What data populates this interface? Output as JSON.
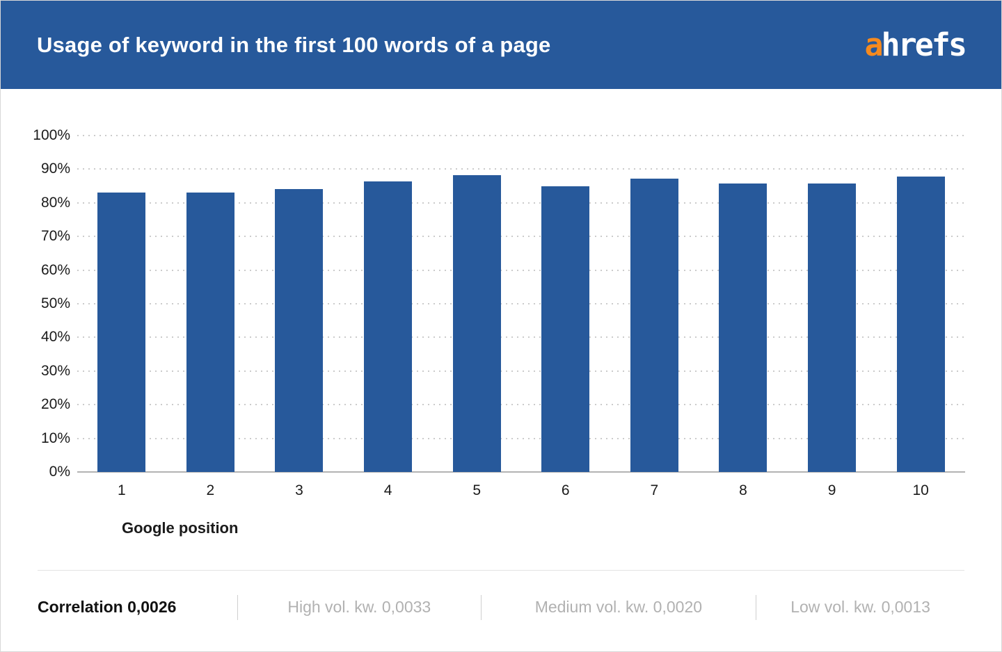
{
  "header": {
    "title": "Usage of keyword in the first 100 words of a page",
    "logo": {
      "prefix": "a",
      "suffix": "hrefs"
    }
  },
  "chart_data": {
    "type": "bar",
    "title": "Usage of keyword in the first 100 words of a page",
    "categories": [
      "1",
      "2",
      "3",
      "4",
      "5",
      "6",
      "7",
      "8",
      "9",
      "10"
    ],
    "values": [
      83,
      83,
      84,
      86.4,
      88.3,
      85,
      87.2,
      85.8,
      85.8,
      87.9
    ],
    "xlabel": "Google position",
    "ylabel": "",
    "ylim": [
      0,
      100
    ],
    "ytick_step": 10,
    "ytick_suffix": "%",
    "grid": "horizontal-dotted",
    "legend": "none",
    "bar_color": "#27599b"
  },
  "footer": {
    "items": [
      {
        "label": "Correlation 0,0026",
        "emphasis": true
      },
      {
        "label": "High vol. kw. 0,0033",
        "emphasis": false
      },
      {
        "label": "Medium vol. kw. 0,0020",
        "emphasis": false
      },
      {
        "label": "Low vol. kw. 0,0013",
        "emphasis": false
      }
    ]
  },
  "colors": {
    "header_bg": "#27599b",
    "bar": "#27599b",
    "logo_orange": "#f68a1e",
    "logo_white": "#ffffff",
    "grid": "#cbcbcb",
    "axis": "#b3b3b3",
    "text_dark": "#1b1b1b",
    "text_gray": "#b1b1b1"
  }
}
